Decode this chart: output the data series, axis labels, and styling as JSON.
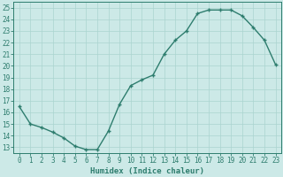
{
  "x": [
    0,
    1,
    2,
    3,
    4,
    5,
    6,
    7,
    8,
    9,
    10,
    11,
    12,
    13,
    14,
    15,
    16,
    17,
    18,
    19,
    20,
    21,
    22,
    23
  ],
  "y": [
    16.5,
    15.0,
    14.7,
    14.3,
    13.8,
    13.1,
    12.8,
    12.8,
    14.4,
    16.7,
    18.3,
    18.8,
    19.2,
    21.0,
    22.2,
    23.0,
    24.5,
    24.8,
    24.8,
    24.8,
    24.3,
    23.3,
    22.2,
    20.1
  ],
  "line_color": "#2e7d6e",
  "marker": "+",
  "marker_size": 3.5,
  "marker_linewidth": 1.0,
  "line_width": 1.0,
  "bg_color": "#cce9e7",
  "grid_color": "#aad4d0",
  "xlabel": "Humidex (Indice chaleur)",
  "xlim": [
    -0.5,
    23.5
  ],
  "ylim": [
    12.5,
    25.5
  ],
  "yticks": [
    13,
    14,
    15,
    16,
    17,
    18,
    19,
    20,
    21,
    22,
    23,
    24,
    25
  ],
  "xticks": [
    0,
    1,
    2,
    3,
    4,
    5,
    6,
    7,
    8,
    9,
    10,
    11,
    12,
    13,
    14,
    15,
    16,
    17,
    18,
    19,
    20,
    21,
    22,
    23
  ],
  "font_color": "#2e7d6e",
  "tick_fontsize": 5.5,
  "xlabel_fontsize": 6.5,
  "xlabel_fontweight": "bold"
}
